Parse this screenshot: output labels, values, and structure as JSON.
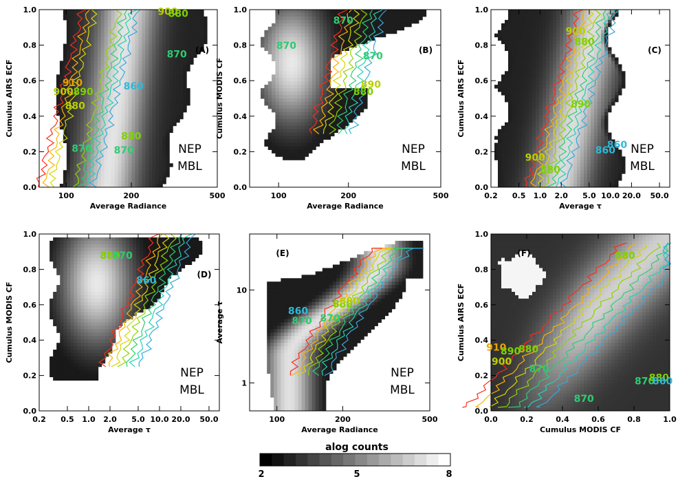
{
  "colorbar": {
    "title": "alog counts",
    "ticks": [
      "2",
      "5",
      "8"
    ],
    "min": 2,
    "max": 8,
    "levels": 16
  },
  "chart_data": [
    {
      "type": "heatmap",
      "panel": "(A)",
      "xlabel": "Average  Radiance",
      "ylabel": "Cumulus AIRS ECF",
      "xscale": "log",
      "xlim": [
        75,
        500
      ],
      "ylim": [
        0,
        1
      ],
      "xticks": [
        {
          "v": 100,
          "t": "100"
        },
        {
          "v": 200,
          "t": "200"
        },
        {
          "v": 500,
          "t": "500"
        }
      ],
      "yticks": [
        {
          "v": 0,
          "t": "0.0"
        },
        {
          "v": 0.2,
          "t": "0.2"
        },
        {
          "v": 0.4,
          "t": "0.4"
        },
        {
          "v": 0.6,
          "t": "0.6"
        },
        {
          "v": 0.8,
          "t": "0.8"
        },
        {
          "v": 1.0,
          "t": "1.0"
        }
      ],
      "annotation": [
        "NEP",
        "MBL"
      ],
      "density": {
        "shape": "curveX",
        "x_start": 140,
        "x_end": 200,
        "width": 0.3,
        "brightness": 0.93
      },
      "contour_labels": [
        {
          "text": "910",
          "x": 107,
          "y": 0.57,
          "color": "#e8a200"
        },
        {
          "text": "900",
          "x": 97,
          "y": 0.52,
          "color": "#b8d000"
        },
        {
          "text": "880",
          "x": 110,
          "y": 0.44,
          "color": "#b8d000"
        },
        {
          "text": "890",
          "x": 120,
          "y": 0.52,
          "color": "#7fd000"
        },
        {
          "text": "870",
          "x": 118,
          "y": 0.2,
          "color": "#2ecc71"
        },
        {
          "text": "860",
          "x": 205,
          "y": 0.55,
          "color": "#2fb8d8"
        },
        {
          "text": "870",
          "x": 325,
          "y": 0.73,
          "color": "#2ecc71"
        },
        {
          "text": "870",
          "x": 185,
          "y": 0.19,
          "color": "#2ecc71"
        },
        {
          "text": "880",
          "x": 200,
          "y": 0.27,
          "color": "#7fd000"
        },
        {
          "text": "900",
          "x": 295,
          "y": 0.97,
          "color": "#b8d000"
        },
        {
          "text": "880",
          "x": 330,
          "y": 0.96,
          "color": "#7fd000"
        }
      ]
    },
    {
      "type": "heatmap",
      "panel": "(B)",
      "xlabel": "Average  Radiance",
      "ylabel": "Cumulus MODIS CF",
      "xscale": "log",
      "xlim": [
        75,
        500
      ],
      "ylim": [
        0,
        1
      ],
      "xticks": [
        {
          "v": 100,
          "t": "100"
        },
        {
          "v": 200,
          "t": "200"
        },
        {
          "v": 500,
          "t": "500"
        }
      ],
      "yticks": [
        {
          "v": 0,
          "t": "0.0"
        },
        {
          "v": 0.2,
          "t": "0.2"
        },
        {
          "v": 0.4,
          "t": "0.4"
        },
        {
          "v": 0.6,
          "t": "0.6"
        },
        {
          "v": 0.8,
          "t": "0.8"
        },
        {
          "v": 1.0,
          "t": "1.0"
        }
      ],
      "annotation": [
        "NEP",
        "MBL"
      ],
      "density": {
        "shape": "cloudB",
        "brightness": 0.95
      },
      "contour_labels": [
        {
          "text": "870",
          "x": 108,
          "y": 0.78,
          "color": "#2ecc71"
        },
        {
          "text": "870",
          "x": 190,
          "y": 0.92,
          "color": "#2ecc71"
        },
        {
          "text": "870",
          "x": 255,
          "y": 0.72,
          "color": "#2ecc71"
        },
        {
          "text": "880",
          "x": 232,
          "y": 0.52,
          "color": "#7fd000"
        },
        {
          "text": "890",
          "x": 250,
          "y": 0.56,
          "color": "#b8d000"
        }
      ]
    },
    {
      "type": "heatmap",
      "panel": "(C)",
      "xlabel": "Average τ",
      "ylabel": "Cumulus AIRS ECF",
      "xscale": "log",
      "xlim": [
        0.2,
        70
      ],
      "ylim": [
        0,
        1
      ],
      "xticks": [
        {
          "v": 0.2,
          "t": "0.2"
        },
        {
          "v": 0.5,
          "t": "0.5"
        },
        {
          "v": 1,
          "t": "1.0"
        },
        {
          "v": 2,
          "t": "2.0"
        },
        {
          "v": 5,
          "t": "5.0"
        },
        {
          "v": 10,
          "t": "10.0"
        },
        {
          "v": 20,
          "t": "20.0"
        },
        {
          "v": 50,
          "t": "50.0"
        }
      ],
      "yticks": [
        {
          "v": 0,
          "t": "0.0"
        },
        {
          "v": 0.2,
          "t": "0.2"
        },
        {
          "v": 0.4,
          "t": "0.4"
        },
        {
          "v": 0.6,
          "t": "0.6"
        },
        {
          "v": 0.8,
          "t": "0.8"
        },
        {
          "v": 1.0,
          "t": "1.0"
        }
      ],
      "annotation": [
        "NEP",
        "MBL"
      ],
      "density": {
        "shape": "curveX",
        "x_start": 1.5,
        "x_end": 8,
        "width": 0.35,
        "brightness": 0.9
      },
      "contour_labels": [
        {
          "text": "900",
          "x": 3.2,
          "y": 0.86,
          "color": "#b8d000"
        },
        {
          "text": "880",
          "x": 4.3,
          "y": 0.8,
          "color": "#7fd000"
        },
        {
          "text": "890",
          "x": 3.8,
          "y": 0.45,
          "color": "#7fd000"
        },
        {
          "text": "900",
          "x": 0.85,
          "y": 0.15,
          "color": "#b8d000"
        },
        {
          "text": "880",
          "x": 1.4,
          "y": 0.08,
          "color": "#7fd000"
        },
        {
          "text": "860",
          "x": 8.5,
          "y": 0.19,
          "color": "#2fb8d8"
        },
        {
          "text": "860",
          "x": 12.5,
          "y": 0.22,
          "color": "#2fb8d8"
        }
      ]
    },
    {
      "type": "heatmap",
      "panel": "(D)",
      "xlabel": "Average τ",
      "ylabel": "Cumulus MODIS CF",
      "xscale": "log",
      "xlim": [
        0.2,
        70
      ],
      "ylim": [
        0,
        1
      ],
      "xticks": [
        {
          "v": 0.2,
          "t": "0.2"
        },
        {
          "v": 0.5,
          "t": "0.5"
        },
        {
          "v": 1,
          "t": "1.0"
        },
        {
          "v": 2,
          "t": "2.0"
        },
        {
          "v": 5,
          "t": "5.0"
        },
        {
          "v": 10,
          "t": "10.0"
        },
        {
          "v": 20,
          "t": "20.0"
        },
        {
          "v": 50,
          "t": "50.0"
        }
      ],
      "yticks": [
        {
          "v": 0,
          "t": "0.0"
        },
        {
          "v": 0.2,
          "t": "0.2"
        },
        {
          "v": 0.4,
          "t": "0.4"
        },
        {
          "v": 0.6,
          "t": "0.6"
        },
        {
          "v": 0.8,
          "t": "0.8"
        },
        {
          "v": 1.0,
          "t": "1.0"
        }
      ],
      "annotation": [
        "NEP",
        "MBL"
      ],
      "density": {
        "shape": "cloudD",
        "brightness": 0.95
      },
      "contour_labels": [
        {
          "text": "880",
          "x": 2.0,
          "y": 0.86,
          "color": "#7fd000"
        },
        {
          "text": "870",
          "x": 3.0,
          "y": 0.86,
          "color": "#2ecc71"
        },
        {
          "text": "860",
          "x": 6.5,
          "y": 0.72,
          "color": "#2fb8d8"
        }
      ]
    },
    {
      "type": "heatmap",
      "panel": "(E)",
      "xlabel": "Average  Radiance",
      "ylabel": "Average τ",
      "xscale": "log",
      "yscale": "log",
      "xlim": [
        75,
        500
      ],
      "ylim": [
        0.5,
        40
      ],
      "xticks": [
        {
          "v": 100,
          "t": "100"
        },
        {
          "v": 200,
          "t": "200"
        },
        {
          "v": 500,
          "t": "500"
        }
      ],
      "yticks": [
        {
          "v": 1,
          "t": "1"
        },
        {
          "v": 10,
          "t": "10"
        }
      ],
      "annotation": [
        "NEP",
        "MBL"
      ],
      "density": {
        "shape": "hook",
        "brightness": 0.92
      },
      "contour_labels": [
        {
          "text": "860",
          "x": 125,
          "y": 5.5,
          "color": "#2fb8d8"
        },
        {
          "text": "870",
          "x": 130,
          "y": 4.3,
          "color": "#2ecc71"
        },
        {
          "text": "870",
          "x": 175,
          "y": 4.6,
          "color": "#2ecc71"
        },
        {
          "text": "880",
          "x": 200,
          "y": 6.5,
          "color": "#7fd000"
        },
        {
          "text": "890",
          "x": 215,
          "y": 7.0,
          "color": "#b8d000"
        }
      ]
    },
    {
      "type": "heatmap",
      "panel": "(F)",
      "xlabel": "Cumulus MODIS CF",
      "ylabel": "Cumulus AIRS ECF",
      "xscale": "linear",
      "xlim": [
        0,
        1
      ],
      "ylim": [
        0,
        1
      ],
      "xticks": [
        {
          "v": 0,
          "t": "0.0"
        },
        {
          "v": 0.2,
          "t": "0.2"
        },
        {
          "v": 0.4,
          "t": "0.4"
        },
        {
          "v": 0.6,
          "t": "0.6"
        },
        {
          "v": 0.8,
          "t": "0.8"
        },
        {
          "v": 1.0,
          "t": "1.0"
        }
      ],
      "yticks": [
        {
          "v": 0,
          "t": "0.0"
        },
        {
          "v": 0.2,
          "t": "0.2"
        },
        {
          "v": 0.4,
          "t": "0.4"
        },
        {
          "v": 0.6,
          "t": "0.6"
        },
        {
          "v": 0.8,
          "t": "0.8"
        },
        {
          "v": 1.0,
          "t": "1.0"
        }
      ],
      "annotation": [],
      "density": {
        "shape": "diagF",
        "brightness": 0.85
      },
      "contour_labels": [
        {
          "text": "910",
          "x": 0.03,
          "y": 0.34,
          "color": "#e8a200"
        },
        {
          "text": "900",
          "x": 0.06,
          "y": 0.26,
          "color": "#b8d000"
        },
        {
          "text": "890",
          "x": 0.11,
          "y": 0.32,
          "color": "#7fd000"
        },
        {
          "text": "880",
          "x": 0.21,
          "y": 0.33,
          "color": "#7fd000"
        },
        {
          "text": "870",
          "x": 0.27,
          "y": 0.22,
          "color": "#2ecc71"
        },
        {
          "text": "870",
          "x": 0.52,
          "y": 0.05,
          "color": "#2ecc71"
        },
        {
          "text": "880",
          "x": 0.75,
          "y": 0.86,
          "color": "#7fd000"
        },
        {
          "text": "870",
          "x": 0.86,
          "y": 0.15,
          "color": "#2ecc71"
        },
        {
          "text": "880",
          "x": 0.94,
          "y": 0.17,
          "color": "#7fd000"
        },
        {
          "text": "860",
          "x": 0.96,
          "y": 0.15,
          "color": "#2fb8d8"
        }
      ]
    }
  ]
}
